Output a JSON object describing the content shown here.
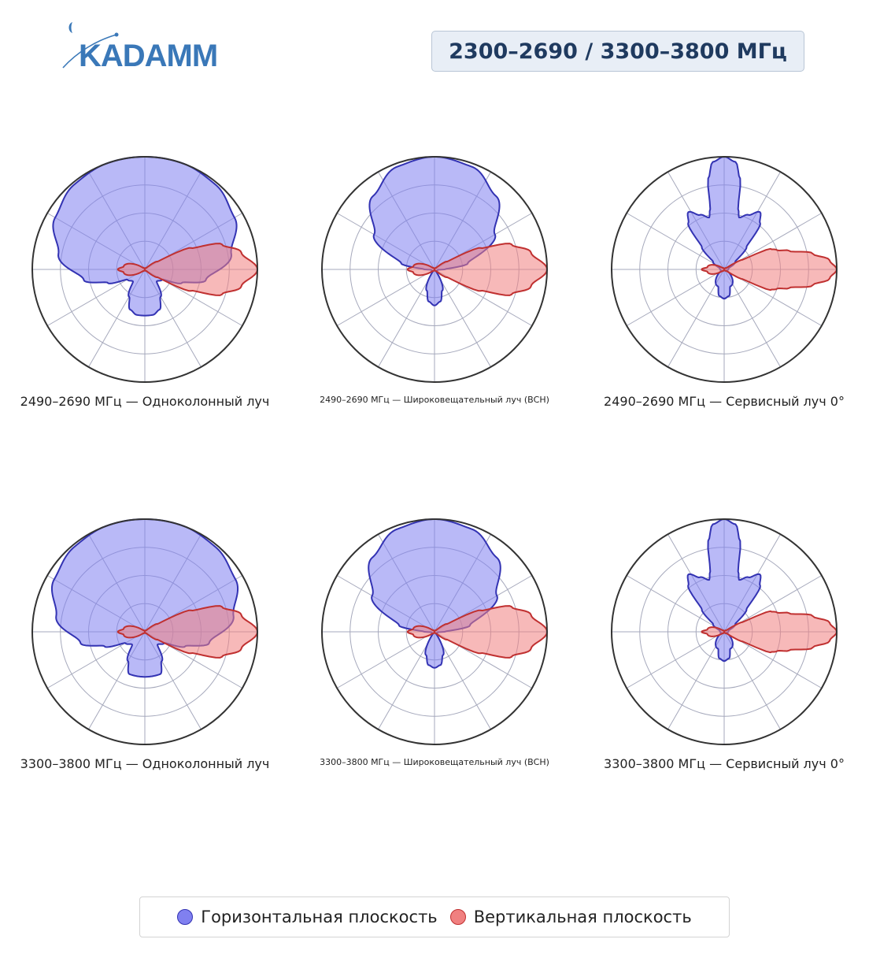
{
  "header": {
    "logo_text": "KADAMM",
    "band_label": "2300–2690 / 3300–3800 МГц"
  },
  "colors": {
    "horizontal_fill": "#8080f0",
    "horizontal_stroke": "#3333b3",
    "vertical_fill": "#f08080",
    "vertical_stroke": "#c03030",
    "grid": "#a6a9bc",
    "frame": "#333333",
    "brand": "#3a78b8"
  },
  "legend": {
    "horizontal": "Горизонтальная плоскость",
    "vertical": "Вертикальная плоскость"
  },
  "chart_data": [
    {
      "type": "polar",
      "title": "2490–2690 МГц — Одноколонный луч",
      "rlim": [
        0,
        1
      ],
      "rings": [
        0.25,
        0.5,
        0.75,
        1.0
      ],
      "spokes_deg": 30,
      "zero_direction": "top",
      "grid": true,
      "series": [
        {
          "name": "Горизонтальная плоскость",
          "points": [
            [
              0,
              1.0
            ],
            [
              20,
              1.0
            ],
            [
              40,
              0.98
            ],
            [
              60,
              0.92
            ],
            [
              80,
              0.78
            ],
            [
              100,
              0.55
            ],
            [
              110,
              0.35
            ],
            [
              120,
              0.18
            ],
            [
              135,
              0.15
            ],
            [
              150,
              0.28
            ],
            [
              160,
              0.38
            ],
            [
              170,
              0.41
            ],
            [
              180,
              0.41
            ]
          ]
        },
        {
          "name": "Вертикальная плоскость",
          "points": [
            [
              0,
              0
            ],
            [
              45,
              0.02
            ],
            [
              58,
              0.13
            ],
            [
              65,
              0.45
            ],
            [
              72,
              0.72
            ],
            [
              80,
              0.87
            ],
            [
              90,
              1.0
            ],
            [
              100,
              0.87
            ],
            [
              108,
              0.72
            ],
            [
              115,
              0.45
            ],
            [
              122,
              0.13
            ],
            [
              135,
              0.02
            ],
            [
              180,
              0
            ],
            [
              225,
              0.02
            ],
            [
              262,
              0.19
            ],
            [
              270,
              0.24
            ],
            [
              278,
              0.19
            ],
            [
              315,
              0.02
            ]
          ]
        }
      ]
    },
    {
      "type": "polar",
      "title": "2490–2690 МГц — Широковещательный луч (ВСН)",
      "rlim": [
        0,
        1
      ],
      "rings": [
        0.25,
        0.5,
        0.75,
        1.0
      ],
      "spokes_deg": 30,
      "zero_direction": "top",
      "grid": true,
      "series": [
        {
          "name": "Горизонтальная плоскость",
          "points": [
            [
              0,
              1.0
            ],
            [
              20,
              0.97
            ],
            [
              40,
              0.85
            ],
            [
              60,
              0.62
            ],
            [
              80,
              0.3
            ],
            [
              88,
              0.1
            ],
            [
              95,
              0.03
            ],
            [
              140,
              0.02
            ],
            [
              160,
              0.2
            ],
            [
              170,
              0.29
            ],
            [
              180,
              0.32
            ]
          ]
        },
        {
          "name": "Вертикальная плоскость",
          "points": [
            [
              0,
              0
            ],
            [
              45,
              0.02
            ],
            [
              58,
              0.13
            ],
            [
              65,
              0.45
            ],
            [
              72,
              0.72
            ],
            [
              80,
              0.87
            ],
            [
              90,
              1.0
            ],
            [
              100,
              0.87
            ],
            [
              108,
              0.72
            ],
            [
              115,
              0.45
            ],
            [
              122,
              0.13
            ],
            [
              135,
              0.02
            ],
            [
              180,
              0
            ],
            [
              225,
              0.02
            ],
            [
              262,
              0.19
            ],
            [
              270,
              0.24
            ],
            [
              278,
              0.19
            ],
            [
              315,
              0.02
            ]
          ]
        }
      ]
    },
    {
      "type": "polar",
      "title": "2490–2690 МГц — Сервисный луч 0°",
      "rlim": [
        0,
        1
      ],
      "rings": [
        0.25,
        0.5,
        0.75,
        1.0
      ],
      "spokes_deg": 30,
      "zero_direction": "top",
      "grid": true,
      "series": [
        {
          "name": "Горизонтальная плоскость",
          "points": [
            [
              0,
              1.0
            ],
            [
              6,
              0.96
            ],
            [
              10,
              0.82
            ],
            [
              13,
              0.55
            ],
            [
              16,
              0.48
            ],
            [
              24,
              0.53
            ],
            [
              32,
              0.6
            ],
            [
              38,
              0.52
            ],
            [
              45,
              0.28
            ],
            [
              55,
              0.12
            ],
            [
              75,
              0.04
            ],
            [
              110,
              0.03
            ],
            [
              160,
              0.16
            ],
            [
              170,
              0.24
            ],
            [
              180,
              0.26
            ]
          ]
        },
        {
          "name": "Вертикальная плоскость",
          "points": [
            [
              0,
              0
            ],
            [
              55,
              0.02
            ],
            [
              62,
              0.18
            ],
            [
              66,
              0.45
            ],
            [
              70,
              0.5
            ],
            [
              74,
              0.6
            ],
            [
              80,
              0.8
            ],
            [
              85,
              0.94
            ],
            [
              90,
              1.0
            ],
            [
              95,
              0.94
            ],
            [
              100,
              0.8
            ],
            [
              106,
              0.6
            ],
            [
              110,
              0.5
            ],
            [
              114,
              0.45
            ],
            [
              118,
              0.18
            ],
            [
              125,
              0.02
            ],
            [
              180,
              0
            ],
            [
              225,
              0.02
            ],
            [
              262,
              0.15
            ],
            [
              270,
              0.2
            ],
            [
              278,
              0.15
            ],
            [
              315,
              0.02
            ]
          ]
        }
      ]
    },
    {
      "type": "polar",
      "title": "3300–3800 МГц — Одноколонный луч",
      "rlim": [
        0,
        1
      ],
      "rings": [
        0.25,
        0.5,
        0.75,
        1.0
      ],
      "spokes_deg": 30,
      "zero_direction": "top",
      "grid": true,
      "series": [
        {
          "name": "Горизонтальная плоскость",
          "points": [
            [
              0,
              1.0
            ],
            [
              20,
              1.0
            ],
            [
              40,
              0.98
            ],
            [
              60,
              0.93
            ],
            [
              80,
              0.8
            ],
            [
              100,
              0.58
            ],
            [
              110,
              0.38
            ],
            [
              120,
              0.2
            ],
            [
              135,
              0.16
            ],
            [
              150,
              0.3
            ],
            [
              160,
              0.4
            ],
            [
              170,
              0.4
            ],
            [
              180,
              0.4
            ]
          ]
        },
        {
          "name": "Вертикальная плоскость",
          "points": [
            [
              0,
              0
            ],
            [
              45,
              0.02
            ],
            [
              58,
              0.13
            ],
            [
              65,
              0.45
            ],
            [
              72,
              0.72
            ],
            [
              80,
              0.87
            ],
            [
              90,
              1.0
            ],
            [
              100,
              0.87
            ],
            [
              108,
              0.72
            ],
            [
              115,
              0.45
            ],
            [
              122,
              0.13
            ],
            [
              135,
              0.02
            ],
            [
              180,
              0
            ],
            [
              225,
              0.02
            ],
            [
              262,
              0.19
            ],
            [
              270,
              0.24
            ],
            [
              278,
              0.19
            ],
            [
              315,
              0.02
            ]
          ]
        }
      ]
    },
    {
      "type": "polar",
      "title": "3300–3800 МГц — Широковещательный луч (ВСН)",
      "rlim": [
        0,
        1
      ],
      "rings": [
        0.25,
        0.5,
        0.75,
        1.0
      ],
      "spokes_deg": 30,
      "zero_direction": "top",
      "grid": true,
      "series": [
        {
          "name": "Горизонтальная плоскость",
          "points": [
            [
              0,
              1.0
            ],
            [
              20,
              0.97
            ],
            [
              40,
              0.86
            ],
            [
              60,
              0.64
            ],
            [
              80,
              0.32
            ],
            [
              88,
              0.1
            ],
            [
              95,
              0.03
            ],
            [
              140,
              0.02
            ],
            [
              160,
              0.22
            ],
            [
              170,
              0.3
            ],
            [
              180,
              0.32
            ]
          ]
        },
        {
          "name": "Вертикальная плоскость",
          "points": [
            [
              0,
              0
            ],
            [
              45,
              0.02
            ],
            [
              58,
              0.13
            ],
            [
              65,
              0.45
            ],
            [
              72,
              0.72
            ],
            [
              80,
              0.87
            ],
            [
              90,
              1.0
            ],
            [
              100,
              0.87
            ],
            [
              108,
              0.72
            ],
            [
              115,
              0.45
            ],
            [
              122,
              0.13
            ],
            [
              135,
              0.02
            ],
            [
              180,
              0
            ],
            [
              225,
              0.02
            ],
            [
              262,
              0.19
            ],
            [
              270,
              0.24
            ],
            [
              278,
              0.19
            ],
            [
              315,
              0.02
            ]
          ]
        }
      ]
    },
    {
      "type": "polar",
      "title": "3300–3800 МГц — Сервисный луч 0°",
      "rlim": [
        0,
        1
      ],
      "rings": [
        0.25,
        0.5,
        0.75,
        1.0
      ],
      "spokes_deg": 30,
      "zero_direction": "top",
      "grid": true,
      "series": [
        {
          "name": "Горизонтальная плоскость",
          "points": [
            [
              0,
              1.0
            ],
            [
              6,
              0.96
            ],
            [
              10,
              0.82
            ],
            [
              13,
              0.55
            ],
            [
              16,
              0.48
            ],
            [
              24,
              0.53
            ],
            [
              32,
              0.6
            ],
            [
              38,
              0.52
            ],
            [
              45,
              0.28
            ],
            [
              55,
              0.12
            ],
            [
              75,
              0.04
            ],
            [
              110,
              0.03
            ],
            [
              160,
              0.16
            ],
            [
              170,
              0.24
            ],
            [
              180,
              0.26
            ]
          ]
        },
        {
          "name": "Вертикальная плоскость",
          "points": [
            [
              0,
              0
            ],
            [
              55,
              0.02
            ],
            [
              62,
              0.18
            ],
            [
              66,
              0.45
            ],
            [
              70,
              0.5
            ],
            [
              74,
              0.6
            ],
            [
              80,
              0.8
            ],
            [
              85,
              0.94
            ],
            [
              90,
              1.0
            ],
            [
              95,
              0.94
            ],
            [
              100,
              0.8
            ],
            [
              106,
              0.6
            ],
            [
              110,
              0.5
            ],
            [
              114,
              0.45
            ],
            [
              118,
              0.18
            ],
            [
              125,
              0.02
            ],
            [
              180,
              0
            ],
            [
              225,
              0.02
            ],
            [
              262,
              0.15
            ],
            [
              270,
              0.2
            ],
            [
              278,
              0.15
            ],
            [
              315,
              0.02
            ]
          ]
        }
      ]
    }
  ]
}
